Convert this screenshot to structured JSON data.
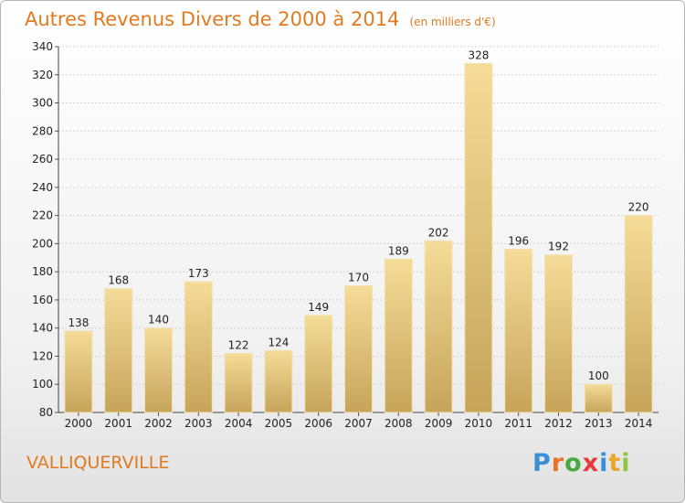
{
  "title": "Autres Revenus Divers de 2000 à 2014",
  "subtitle": "(en milliers d'€)",
  "commune": "VALLIQUERVILLE",
  "logo": {
    "letters": [
      "P",
      "r",
      "o",
      "x",
      "i",
      "t",
      "i"
    ],
    "colors": [
      "#3a8fd8",
      "#e8732a",
      "#4aa843",
      "#e83a3a",
      "#3a8fd8",
      "#e8a72a",
      "#8cc63e"
    ]
  },
  "colors": {
    "title": "#e07b1f",
    "bar_light": "#f5dc98",
    "bar_dark": "#c6a45a"
  },
  "chart_data": {
    "type": "bar",
    "title": "Autres Revenus Divers de 2000 à 2014",
    "subtitle": "(en milliers d'€)",
    "categories": [
      "2000",
      "2001",
      "2002",
      "2003",
      "2004",
      "2005",
      "2006",
      "2007",
      "2008",
      "2009",
      "2010",
      "2011",
      "2012",
      "2013",
      "2014"
    ],
    "values": [
      138,
      168,
      140,
      173,
      122,
      124,
      149,
      170,
      189,
      202,
      328,
      196,
      192,
      100,
      220
    ],
    "ylim": [
      80,
      340
    ],
    "yticks": [
      80,
      100,
      120,
      140,
      160,
      180,
      200,
      220,
      240,
      260,
      280,
      300,
      320,
      340
    ],
    "grid": true,
    "data_labels": true
  }
}
